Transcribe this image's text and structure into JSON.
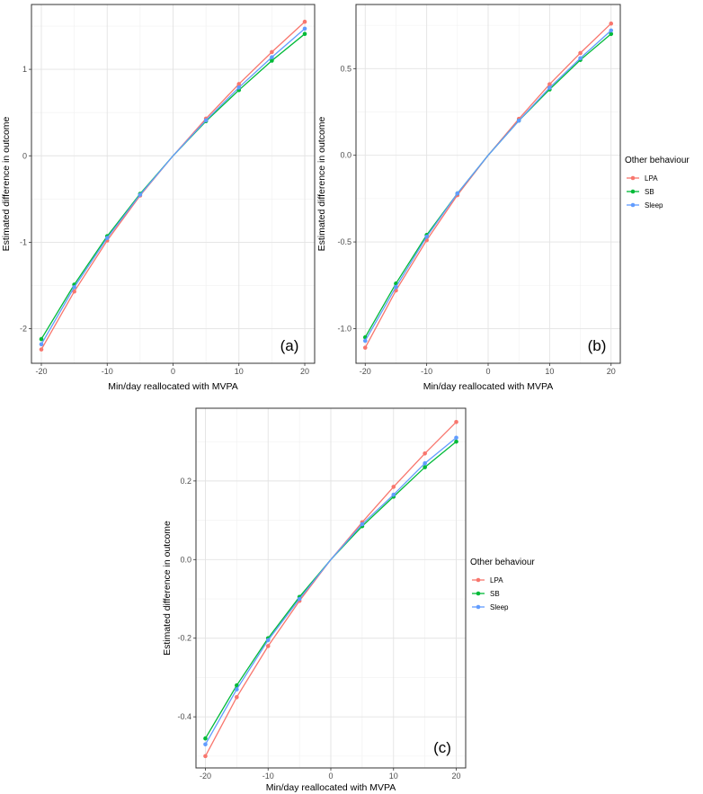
{
  "chart_data": [
    {
      "type": "line",
      "panel_label": "(a)",
      "xlabel": "Min/day reallocated with MVPA",
      "ylabel": "Estimated difference in outcome",
      "x": [
        -20,
        -15,
        -10,
        -5,
        0,
        5,
        10,
        15,
        20
      ],
      "xticks": [
        -20,
        -10,
        0,
        10,
        20
      ],
      "yticks": [
        -2,
        -1,
        0,
        1
      ],
      "xlim": [
        -21.5,
        21.5
      ],
      "ylim": [
        -2.4,
        1.75
      ],
      "grid": true,
      "legend": null,
      "series": [
        {
          "name": "LPA",
          "color": "#F8766D",
          "values": [
            -2.24,
            -1.57,
            -0.98,
            -0.46,
            0,
            0.43,
            0.83,
            1.2,
            1.55
          ]
        },
        {
          "name": "SB",
          "color": "#00BA38",
          "values": [
            -2.12,
            -1.49,
            -0.93,
            -0.44,
            0,
            0.4,
            0.76,
            1.1,
            1.41
          ]
        },
        {
          "name": "Sleep",
          "color": "#619CFF",
          "values": [
            -2.18,
            -1.52,
            -0.95,
            -0.45,
            0,
            0.41,
            0.79,
            1.14,
            1.47
          ]
        }
      ]
    },
    {
      "type": "line",
      "panel_label": "(b)",
      "xlabel": "Min/day reallocated with MVPA",
      "ylabel": "Estimated difference in outcome",
      "x": [
        -20,
        -15,
        -10,
        -5,
        0,
        5,
        10,
        15,
        20
      ],
      "xticks": [
        -20,
        -10,
        0,
        10,
        20
      ],
      "yticks": [
        -1.0,
        -0.5,
        0.0,
        0.5
      ],
      "ytick_labels": [
        "-1.0",
        "-0.5",
        "0.0",
        "0.5"
      ],
      "xlim": [
        -21.5,
        21.5
      ],
      "ylim": [
        -1.2,
        0.87
      ],
      "grid": true,
      "legend": {
        "title": "Other behaviour",
        "position": "right",
        "entries": [
          "LPA",
          "SB",
          "Sleep"
        ]
      },
      "series": [
        {
          "name": "LPA",
          "color": "#F8766D",
          "values": [
            -1.11,
            -0.78,
            -0.49,
            -0.23,
            0,
            0.21,
            0.41,
            0.59,
            0.76
          ]
        },
        {
          "name": "SB",
          "color": "#00BA38",
          "values": [
            -1.05,
            -0.74,
            -0.46,
            -0.22,
            0,
            0.2,
            0.38,
            0.55,
            0.7
          ]
        },
        {
          "name": "Sleep",
          "color": "#619CFF",
          "values": [
            -1.07,
            -0.76,
            -0.47,
            -0.22,
            0,
            0.2,
            0.39,
            0.56,
            0.72
          ]
        }
      ]
    },
    {
      "type": "line",
      "panel_label": "(c)",
      "xlabel": "Min/day reallocated with MVPA",
      "ylabel": "Estimated difference in outcome",
      "x": [
        -20,
        -15,
        -10,
        -5,
        0,
        5,
        10,
        15,
        20
      ],
      "xticks": [
        -20,
        -10,
        0,
        10,
        20
      ],
      "yticks": [
        -0.4,
        -0.2,
        0.0,
        0.2
      ],
      "ytick_labels": [
        "-0.4",
        "-0.2",
        "0.0",
        "0.2"
      ],
      "xlim": [
        -21.5,
        21.5
      ],
      "ylim": [
        -0.53,
        0.385
      ],
      "grid": true,
      "legend": {
        "title": "Other behaviour",
        "position": "right",
        "entries": [
          "LPA",
          "SB",
          "Sleep"
        ]
      },
      "series": [
        {
          "name": "LPA",
          "color": "#F8766D",
          "values": [
            -0.5,
            -0.35,
            -0.22,
            -0.105,
            0,
            0.095,
            0.185,
            0.27,
            0.35
          ]
        },
        {
          "name": "SB",
          "color": "#00BA38",
          "values": [
            -0.455,
            -0.32,
            -0.2,
            -0.095,
            0,
            0.085,
            0.16,
            0.235,
            0.3
          ]
        },
        {
          "name": "Sleep",
          "color": "#619CFF",
          "values": [
            -0.47,
            -0.33,
            -0.205,
            -0.1,
            0,
            0.09,
            0.165,
            0.245,
            0.31
          ]
        }
      ]
    }
  ]
}
